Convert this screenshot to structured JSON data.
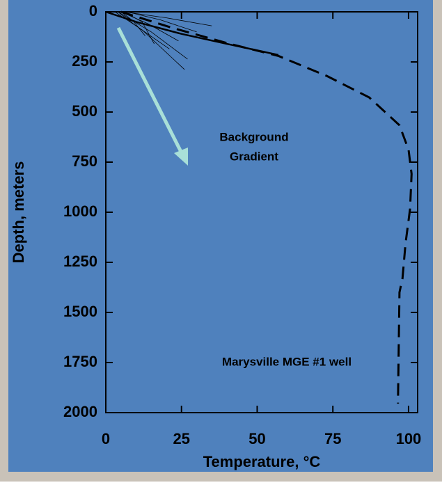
{
  "chart_data": {
    "type": "line",
    "x_label": "Temperature, °C",
    "y_label": "Depth, meters",
    "annotations": [
      [
        "Background",
        "Gradient"
      ],
      [
        "Marysville MGE #1 well"
      ]
    ],
    "xlim": [
      0,
      103
    ],
    "xticks": [
      0,
      25,
      50,
      75,
      100
    ],
    "ylim": [
      0,
      2000
    ],
    "yticks": [
      0,
      250,
      500,
      750,
      1000,
      1250,
      1500,
      1750,
      2000
    ],
    "y_inverted": true,
    "series": [
      {
        "color": "#000000",
        "style": "dashed",
        "width": 3,
        "x": [
          5,
          22,
          41,
          57,
          73,
          87,
          97,
          100,
          101,
          100.5,
          99,
          98,
          97,
          96.5
        ],
        "values": [
          0,
          80,
          160,
          220,
          320,
          427,
          566,
          688,
          809,
          983,
          1156,
          1330,
          1400,
          1955
        ]
      },
      {
        "color": "#000000",
        "style": "solid",
        "width": 2.5,
        "x": [
          0,
          10,
          25,
          40,
          57
        ],
        "values": [
          0,
          50,
          110,
          160,
          215
        ]
      },
      {
        "color": "#000000",
        "style": "solid",
        "width": 0.8,
        "x": [
          3,
          12,
          26
        ],
        "values": [
          0,
          90,
          288
        ]
      },
      {
        "color": "#000000",
        "style": "solid",
        "width": 0.8,
        "x": [
          4,
          15,
          27
        ],
        "values": [
          0,
          100,
          236
        ]
      },
      {
        "color": "#000000",
        "style": "solid",
        "width": 0.8,
        "x": [
          5,
          14,
          24
        ],
        "values": [
          0,
          60,
          145
        ]
      },
      {
        "color": "#000000",
        "style": "solid",
        "width": 0.8,
        "x": [
          4,
          10,
          21
        ],
        "values": [
          0,
          70,
          185
        ]
      },
      {
        "color": "#000000",
        "style": "solid",
        "width": 0.8,
        "x": [
          6,
          12,
          16
        ],
        "values": [
          0,
          50,
          160
        ]
      },
      {
        "color": "#000000",
        "style": "solid",
        "width": 0.8,
        "x": [
          5,
          9,
          13
        ],
        "values": [
          0,
          45,
          120
        ]
      },
      {
        "color": "#000000",
        "style": "solid",
        "width": 0.8,
        "x": [
          7,
          18,
          30
        ],
        "values": [
          0,
          40,
          100
        ]
      },
      {
        "color": "#000000",
        "style": "solid",
        "width": 0.8,
        "x": [
          6,
          20,
          35
        ],
        "values": [
          0,
          30,
          70
        ]
      }
    ]
  }
}
